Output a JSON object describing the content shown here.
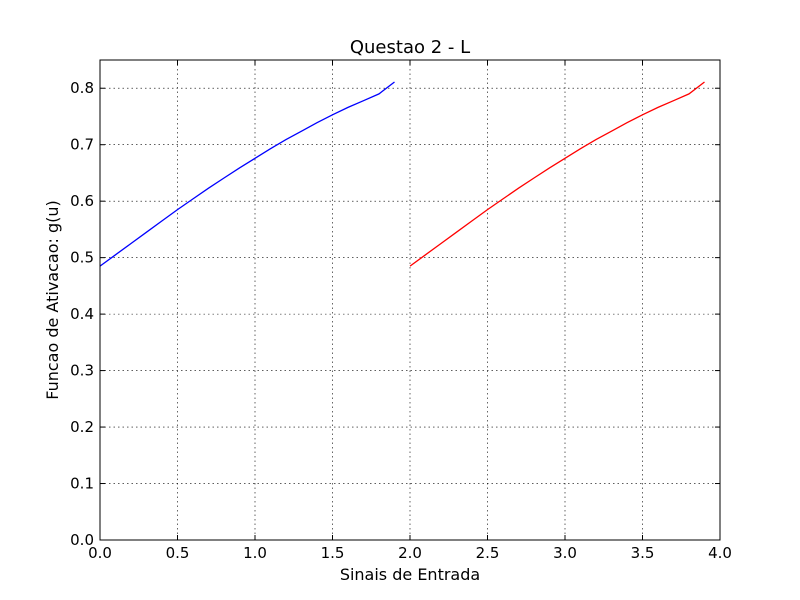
{
  "chart_data": {
    "type": "line",
    "title": "Questao 2 - L",
    "xlabel": "Sinais de Entrada",
    "ylabel": "Funcao de Ativacao: g(u)",
    "xlim": [
      0,
      4
    ],
    "ylim": [
      0,
      0.85
    ],
    "grid": true,
    "x_ticks": [
      "0.0",
      "0.5",
      "1.0",
      "1.5",
      "2.0",
      "2.5",
      "3.0",
      "3.5",
      "4.0"
    ],
    "y_ticks": [
      "0.0",
      "0.1",
      "0.2",
      "0.3",
      "0.4",
      "0.5",
      "0.6",
      "0.7",
      "0.8"
    ],
    "series": [
      {
        "color": "#0000ff",
        "x": [
          0.0,
          0.1,
          0.2,
          0.3,
          0.4,
          0.5,
          0.6,
          0.7,
          0.8,
          0.9,
          1.0,
          1.1,
          1.2,
          1.3,
          1.4,
          1.5,
          1.6,
          1.7,
          1.8,
          1.9
        ],
        "y": [
          0.485,
          0.505,
          0.525,
          0.545,
          0.565,
          0.585,
          0.604,
          0.623,
          0.641,
          0.659,
          0.676,
          0.693,
          0.709,
          0.724,
          0.739,
          0.753,
          0.766,
          0.778,
          0.79,
          0.811
        ]
      },
      {
        "color": "#ff0000",
        "x": [
          2.0,
          2.1,
          2.2,
          2.3,
          2.4,
          2.5,
          2.6,
          2.7,
          2.8,
          2.9,
          3.0,
          3.1,
          3.2,
          3.3,
          3.4,
          3.5,
          3.6,
          3.7,
          3.8,
          3.9
        ],
        "y": [
          0.485,
          0.505,
          0.525,
          0.545,
          0.565,
          0.585,
          0.604,
          0.623,
          0.641,
          0.659,
          0.676,
          0.693,
          0.709,
          0.724,
          0.739,
          0.753,
          0.766,
          0.778,
          0.79,
          0.811
        ]
      }
    ]
  }
}
